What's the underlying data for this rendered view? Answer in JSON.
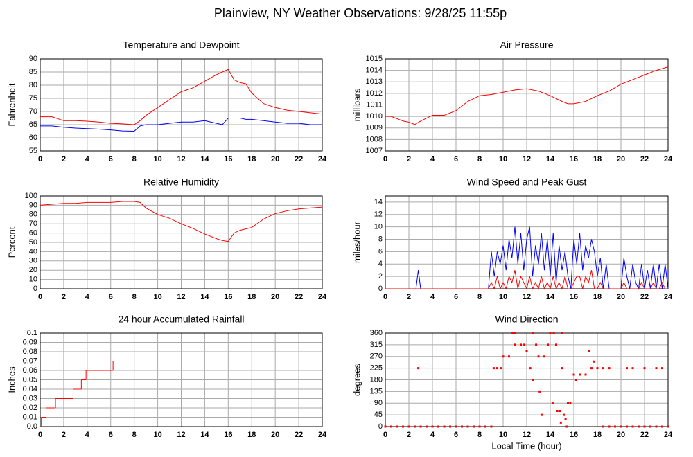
{
  "title": "Plainview, NY Weather Observations: 9/28/25 11:55p",
  "chart_data": [
    {
      "type": "line",
      "title": "Temperature and Dewpoint",
      "y_label": "Fahrenheit",
      "x": [
        0,
        1,
        2,
        3,
        4,
        5,
        6,
        7,
        8,
        8.5,
        9,
        10,
        11,
        12,
        13,
        14,
        15,
        15.5,
        16,
        16.5,
        17,
        17.5,
        18,
        19,
        20,
        21,
        22,
        23,
        24
      ],
      "series": [
        {
          "color": "#ff0000",
          "values": [
            68,
            68,
            66.5,
            66.5,
            66.3,
            66,
            65.5,
            65.3,
            65,
            66.5,
            68.5,
            71.5,
            74.5,
            77.5,
            79,
            81.5,
            84,
            85,
            86,
            82,
            81,
            80.5,
            77,
            73,
            71.5,
            70.5,
            70,
            69.5,
            69
          ]
        },
        {
          "color": "#0000ff",
          "values": [
            64.5,
            64.5,
            64,
            63.7,
            63.5,
            63.3,
            63,
            62.6,
            62.5,
            64.5,
            65,
            65,
            65.5,
            66,
            66,
            66.5,
            65.5,
            65,
            67.5,
            67.5,
            67.5,
            67,
            67,
            66.5,
            66,
            65.5,
            65.5,
            65,
            65
          ]
        }
      ],
      "xlim": [
        0,
        24
      ],
      "xticks": [
        0,
        2,
        4,
        6,
        8,
        10,
        12,
        14,
        16,
        18,
        20,
        22,
        24
      ],
      "ylim": [
        55,
        90
      ],
      "yticks": [
        55,
        60,
        65,
        70,
        75,
        80,
        85,
        90
      ],
      "grid": true
    },
    {
      "type": "line",
      "title": "Air Pressure",
      "y_label": "millibars",
      "x": [
        0,
        0.5,
        1,
        1.5,
        2,
        2.5,
        3,
        4,
        5,
        6,
        7,
        8,
        9,
        10,
        11,
        12,
        13,
        14,
        15,
        15.5,
        16,
        17,
        18,
        19,
        20,
        21,
        22,
        23,
        24
      ],
      "series": [
        {
          "color": "#ff0000",
          "values": [
            1010,
            1010,
            1009.8,
            1009.6,
            1009.5,
            1009.3,
            1009.6,
            1010.1,
            1010.1,
            1010.5,
            1011.3,
            1011.8,
            1011.9,
            1012.1,
            1012.3,
            1012.4,
            1012.2,
            1011.8,
            1011.3,
            1011.1,
            1011.1,
            1011.3,
            1011.8,
            1012.2,
            1012.8,
            1013.2,
            1013.6,
            1014,
            1014.3
          ]
        }
      ],
      "xlim": [
        0,
        24
      ],
      "xticks": [
        0,
        2,
        4,
        6,
        8,
        10,
        12,
        14,
        16,
        18,
        20,
        22,
        24
      ],
      "ylim": [
        1007,
        1015
      ],
      "yticks": [
        1007,
        1008,
        1009,
        1010,
        1011,
        1012,
        1013,
        1014,
        1015
      ],
      "grid": true
    },
    {
      "type": "line",
      "title": "Relative Humidity",
      "y_label": "Percent",
      "x": [
        0,
        1,
        2,
        3,
        4,
        5,
        6,
        7,
        8,
        8.5,
        9,
        10,
        11,
        12,
        13,
        14,
        15,
        15.5,
        16,
        16.5,
        17,
        18,
        19,
        20,
        21,
        22,
        23,
        24
      ],
      "series": [
        {
          "color": "#ff0000",
          "values": [
            90,
            91,
            92,
            92,
            93,
            93,
            93,
            94,
            94,
            93,
            87,
            80,
            76,
            70,
            65,
            59,
            54,
            52,
            51,
            60,
            63,
            66,
            75,
            81,
            84,
            86,
            87,
            88
          ]
        }
      ],
      "xlim": [
        0,
        24
      ],
      "xticks": [
        0,
        2,
        4,
        6,
        8,
        10,
        12,
        14,
        16,
        18,
        20,
        22,
        24
      ],
      "ylim": [
        0,
        100
      ],
      "yticks": [
        0,
        10,
        20,
        30,
        40,
        50,
        60,
        70,
        80,
        90,
        100
      ],
      "grid": true
    },
    {
      "type": "line",
      "title": "Wind Speed and Peak Gust",
      "y_label": "miles/hour",
      "x": [
        0,
        2.6,
        2.8,
        3.0,
        8.75,
        9,
        9.25,
        9.5,
        9.75,
        10,
        10.25,
        10.5,
        10.75,
        11,
        11.25,
        11.5,
        11.75,
        12,
        12.25,
        12.5,
        12.75,
        13,
        13.25,
        13.5,
        13.75,
        14,
        14.25,
        14.5,
        14.75,
        15,
        15.25,
        15.5,
        15.75,
        16,
        16.25,
        16.5,
        16.75,
        17,
        17.25,
        17.5,
        17.75,
        18,
        18.25,
        18.5,
        18.75,
        19,
        19.25,
        19.5,
        19.75,
        20,
        20.25,
        20.5,
        20.75,
        21,
        21.25,
        21.5,
        21.75,
        22,
        22.25,
        22.5,
        22.75,
        23,
        23.25,
        23.5,
        23.75,
        24
      ],
      "series": [
        {
          "color": "#0000ff",
          "values": [
            0,
            0,
            3,
            0,
            0,
            6,
            2,
            6,
            4,
            7,
            3,
            8,
            5,
            10,
            4,
            9,
            3,
            8,
            10,
            2,
            7,
            4,
            9,
            3,
            8,
            2,
            9,
            1,
            7,
            3,
            6,
            2,
            0,
            8,
            4,
            9,
            3,
            7,
            5,
            8,
            6,
            2,
            5,
            0,
            4,
            0,
            0,
            0,
            0,
            0,
            5,
            2,
            0,
            4,
            1,
            0,
            4,
            0,
            3,
            0,
            4,
            0,
            4,
            0,
            4,
            0
          ]
        },
        {
          "color": "#ff0000",
          "values": [
            0,
            0,
            0,
            0,
            0,
            1,
            0,
            2,
            0,
            1,
            0,
            2,
            1,
            3,
            0,
            2,
            1,
            0,
            2,
            0,
            1,
            0,
            2,
            0,
            1,
            0,
            2,
            0,
            1,
            0,
            2,
            0,
            0,
            1,
            2,
            2,
            0,
            2,
            1,
            3,
            0,
            0,
            1,
            0,
            0,
            0,
            0,
            0,
            0,
            0,
            1,
            0,
            0,
            0,
            0,
            0,
            1,
            0,
            0,
            0,
            1,
            0,
            0,
            1,
            0,
            0
          ]
        }
      ],
      "xlim": [
        0,
        24
      ],
      "xticks": [
        0,
        2,
        4,
        6,
        8,
        10,
        12,
        14,
        16,
        18,
        20,
        22,
        24
      ],
      "ylim": [
        0,
        15
      ],
      "yticks": [
        0,
        2,
        4,
        6,
        8,
        10,
        12,
        14
      ],
      "grid": true
    },
    {
      "type": "line",
      "drawstyle": "steps-post",
      "title": "24 hour Accumulated Rainfall",
      "y_label": "Inches",
      "x": [
        0,
        0.1,
        0.5,
        1.3,
        2.8,
        3.5,
        3.9,
        6.2,
        24
      ],
      "series": [
        {
          "color": "#ff0000",
          "values": [
            0,
            0.01,
            0.02,
            0.03,
            0.04,
            0.05,
            0.06,
            0.07,
            0.07
          ]
        }
      ],
      "xlim": [
        0,
        24
      ],
      "xticks": [
        0,
        2,
        4,
        6,
        8,
        10,
        12,
        14,
        16,
        18,
        20,
        22,
        24
      ],
      "ylim": [
        0,
        0.1
      ],
      "yticks": [
        {
          "value": 0,
          "label": "0.0"
        },
        0.01,
        0.02,
        0.03,
        0.04,
        0.05,
        0.06,
        0.07,
        0.08,
        0.09,
        0.1
      ],
      "grid": true
    },
    {
      "type": "scatter",
      "title": "Wind Direction",
      "y_label": "degrees",
      "x_label": "Local Time (hour)",
      "x": [
        0,
        0.5,
        1,
        1.5,
        2,
        2.5,
        3,
        3.5,
        4,
        4.5,
        5,
        5.5,
        6,
        6.5,
        7,
        7.5,
        8,
        8.5,
        9,
        2.8,
        9.2,
        9.5,
        9.8,
        10,
        10.5,
        10.8,
        11,
        11,
        11.5,
        11.8,
        12,
        12.3,
        12.5,
        12.5,
        12.8,
        13,
        13.1,
        13.3,
        13.5,
        13.8,
        14,
        14.2,
        14.3,
        14.5,
        14.6,
        14.8,
        14.9,
        15,
        15,
        15.2,
        15.3,
        15.4,
        15.5,
        15.7,
        16,
        16.2,
        16.5,
        17,
        17.3,
        17.5,
        17.7,
        18,
        18.5,
        19,
        20.5,
        21,
        22,
        23,
        23.5,
        18.5,
        19,
        19.5,
        20,
        20.5,
        21,
        21.5,
        22,
        22.5,
        23,
        23.5,
        24
      ],
      "series": [
        {
          "color": "#ff0000",
          "values": [
            0,
            0,
            0,
            0,
            0,
            0,
            0,
            0,
            0,
            0,
            0,
            0,
            0,
            0,
            0,
            0,
            0,
            0,
            0,
            225,
            225,
            225,
            225,
            270,
            270,
            360,
            315,
            360,
            315,
            315,
            290,
            225,
            180,
            360,
            315,
            270,
            135,
            45,
            270,
            315,
            360,
            90,
            360,
            315,
            60,
            60,
            15,
            360,
            225,
            45,
            30,
            0,
            90,
            90,
            200,
            180,
            200,
            200,
            290,
            225,
            250,
            225,
            225,
            225,
            225,
            225,
            225,
            225,
            225,
            0,
            0,
            0,
            0,
            0,
            0,
            0,
            0,
            0,
            0,
            0,
            0
          ]
        }
      ],
      "xlim": [
        0,
        24
      ],
      "xticks": [
        0,
        2,
        4,
        6,
        8,
        10,
        12,
        14,
        16,
        18,
        20,
        22,
        24
      ],
      "ylim": [
        0,
        360
      ],
      "yticks": [
        0,
        45,
        90,
        135,
        180,
        225,
        270,
        315,
        360
      ],
      "grid": true
    }
  ]
}
